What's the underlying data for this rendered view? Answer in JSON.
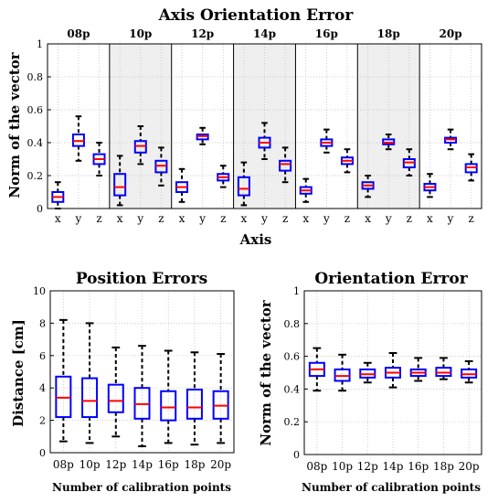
{
  "colors": {
    "box": "#0000ff",
    "median": "#ff0000",
    "whisker": "#000000",
    "shade": "#efefef",
    "axis": "#000000",
    "grid": "#bdbdbd"
  },
  "chart_data": [
    {
      "type": "box",
      "title": "Axis Orientation Error",
      "xlabel": "Axis",
      "ylabel": "Norm of the vector",
      "ylim": [
        0,
        1
      ],
      "yticks": [
        "0",
        "0.2",
        "0.4",
        "0.6",
        "0.8",
        "1"
      ],
      "grid": true,
      "groups": [
        "08p",
        "10p",
        "12p",
        "14p",
        "16p",
        "18p",
        "20p"
      ],
      "shaded_groups": [
        "10p",
        "14p",
        "18p"
      ],
      "categories": [
        "x",
        "y",
        "z"
      ],
      "series": [
        {
          "group": "08p",
          "boxes": [
            {
              "cat": "x",
              "min": 0.0,
              "q1": 0.04,
              "median": 0.07,
              "q3": 0.1,
              "max": 0.16
            },
            {
              "cat": "y",
              "min": 0.29,
              "q1": 0.38,
              "median": 0.41,
              "q3": 0.45,
              "max": 0.56
            },
            {
              "cat": "z",
              "min": 0.2,
              "q1": 0.27,
              "median": 0.3,
              "q3": 0.33,
              "max": 0.4
            }
          ]
        },
        {
          "group": "10p",
          "boxes": [
            {
              "cat": "x",
              "min": 0.02,
              "q1": 0.08,
              "median": 0.13,
              "q3": 0.21,
              "max": 0.32
            },
            {
              "cat": "y",
              "min": 0.27,
              "q1": 0.34,
              "median": 0.38,
              "q3": 0.41,
              "max": 0.5
            },
            {
              "cat": "z",
              "min": 0.14,
              "q1": 0.22,
              "median": 0.26,
              "q3": 0.29,
              "max": 0.37
            }
          ]
        },
        {
          "group": "12p",
          "boxes": [
            {
              "cat": "x",
              "min": 0.04,
              "q1": 0.1,
              "median": 0.13,
              "q3": 0.16,
              "max": 0.24
            },
            {
              "cat": "y",
              "min": 0.39,
              "q1": 0.42,
              "median": 0.44,
              "q3": 0.45,
              "max": 0.49
            },
            {
              "cat": "z",
              "min": 0.13,
              "q1": 0.17,
              "median": 0.19,
              "q3": 0.21,
              "max": 0.26
            }
          ]
        },
        {
          "group": "14p",
          "boxes": [
            {
              "cat": "x",
              "min": 0.02,
              "q1": 0.08,
              "median": 0.12,
              "q3": 0.19,
              "max": 0.28
            },
            {
              "cat": "y",
              "min": 0.3,
              "q1": 0.37,
              "median": 0.4,
              "q3": 0.43,
              "max": 0.52
            },
            {
              "cat": "z",
              "min": 0.16,
              "q1": 0.23,
              "median": 0.27,
              "q3": 0.29,
              "max": 0.37
            }
          ]
        },
        {
          "group": "16p",
          "boxes": [
            {
              "cat": "x",
              "min": 0.04,
              "q1": 0.09,
              "median": 0.11,
              "q3": 0.13,
              "max": 0.18
            },
            {
              "cat": "y",
              "min": 0.34,
              "q1": 0.38,
              "median": 0.4,
              "q3": 0.42,
              "max": 0.48
            },
            {
              "cat": "z",
              "min": 0.22,
              "q1": 0.27,
              "median": 0.29,
              "q3": 0.31,
              "max": 0.36
            }
          ]
        },
        {
          "group": "18p",
          "boxes": [
            {
              "cat": "x",
              "min": 0.07,
              "q1": 0.12,
              "median": 0.14,
              "q3": 0.16,
              "max": 0.2
            },
            {
              "cat": "y",
              "min": 0.36,
              "q1": 0.39,
              "median": 0.4,
              "q3": 0.42,
              "max": 0.45
            },
            {
              "cat": "z",
              "min": 0.2,
              "q1": 0.25,
              "median": 0.28,
              "q3": 0.3,
              "max": 0.36
            }
          ]
        },
        {
          "group": "20p",
          "boxes": [
            {
              "cat": "x",
              "min": 0.07,
              "q1": 0.11,
              "median": 0.13,
              "q3": 0.15,
              "max": 0.21
            },
            {
              "cat": "y",
              "min": 0.36,
              "q1": 0.4,
              "median": 0.42,
              "q3": 0.43,
              "max": 0.48
            },
            {
              "cat": "z",
              "min": 0.17,
              "q1": 0.22,
              "median": 0.25,
              "q3": 0.27,
              "max": 0.33
            }
          ]
        }
      ]
    },
    {
      "type": "box",
      "title": "Position Errors",
      "xlabel": "Number of calibration points",
      "ylabel": "Distance [cm]",
      "ylim": [
        0,
        10
      ],
      "yticks": [
        "0",
        "2",
        "4",
        "6",
        "8",
        "10"
      ],
      "grid": true,
      "categories": [
        "08p",
        "10p",
        "12p",
        "14p",
        "16p",
        "18p",
        "20p"
      ],
      "boxes": [
        {
          "cat": "08p",
          "min": 0.7,
          "q1": 2.2,
          "median": 3.4,
          "q3": 4.7,
          "max": 8.2
        },
        {
          "cat": "10p",
          "min": 0.6,
          "q1": 2.2,
          "median": 3.2,
          "q3": 4.6,
          "max": 8.0
        },
        {
          "cat": "12p",
          "min": 1.0,
          "q1": 2.5,
          "median": 3.2,
          "q3": 4.2,
          "max": 6.5
        },
        {
          "cat": "14p",
          "min": 0.4,
          "q1": 2.1,
          "median": 3.0,
          "q3": 4.0,
          "max": 6.6
        },
        {
          "cat": "16p",
          "min": 0.6,
          "q1": 2.0,
          "median": 2.8,
          "q3": 3.8,
          "max": 6.3
        },
        {
          "cat": "18p",
          "min": 0.5,
          "q1": 2.1,
          "median": 2.8,
          "q3": 3.9,
          "max": 6.2
        },
        {
          "cat": "20p",
          "min": 0.6,
          "q1": 2.1,
          "median": 2.9,
          "q3": 3.8,
          "max": 6.1
        }
      ]
    },
    {
      "type": "box",
      "title": "Orientation Error",
      "xlabel": "Number of calibration points",
      "ylabel": "Norm of the vector",
      "ylim": [
        0,
        1
      ],
      "yticks": [
        "0",
        "0.2",
        "0.4",
        "0.6",
        "0.8",
        "1"
      ],
      "grid": true,
      "categories": [
        "08p",
        "10p",
        "12p",
        "14p",
        "16p",
        "18p",
        "20p"
      ],
      "boxes": [
        {
          "cat": "08p",
          "min": 0.39,
          "q1": 0.48,
          "median": 0.52,
          "q3": 0.56,
          "max": 0.65
        },
        {
          "cat": "10p",
          "min": 0.39,
          "q1": 0.45,
          "median": 0.48,
          "q3": 0.52,
          "max": 0.61
        },
        {
          "cat": "12p",
          "min": 0.44,
          "q1": 0.47,
          "median": 0.49,
          "q3": 0.52,
          "max": 0.56
        },
        {
          "cat": "14p",
          "min": 0.41,
          "q1": 0.47,
          "median": 0.5,
          "q3": 0.53,
          "max": 0.62
        },
        {
          "cat": "16p",
          "min": 0.45,
          "q1": 0.48,
          "median": 0.5,
          "q3": 0.52,
          "max": 0.59
        },
        {
          "cat": "18p",
          "min": 0.46,
          "q1": 0.48,
          "median": 0.5,
          "q3": 0.53,
          "max": 0.59
        },
        {
          "cat": "20p",
          "min": 0.44,
          "q1": 0.47,
          "median": 0.49,
          "q3": 0.52,
          "max": 0.57
        }
      ]
    }
  ]
}
